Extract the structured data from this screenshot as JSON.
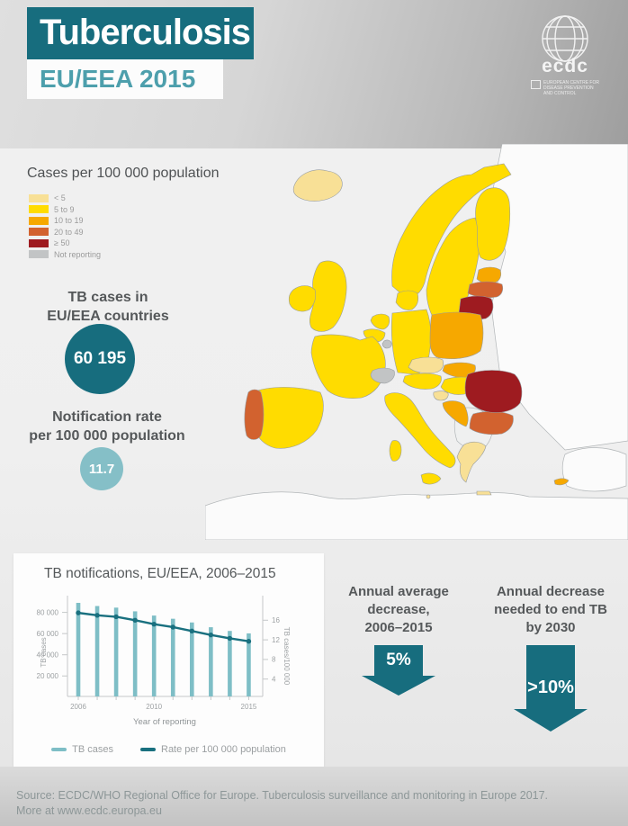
{
  "header": {
    "title": "Tuberculosis",
    "subtitle": "EU/EEA 2015",
    "logo_text": "ecdc",
    "logo_caption": "EUROPEAN CENTRE FOR\nDISEASE PREVENTION\nAND CONTROL"
  },
  "legend": {
    "title": "Cases per 100 000 population",
    "items": [
      {
        "label": "< 5",
        "key": "lt5",
        "color": "#F8E096"
      },
      {
        "label": "5 to 9",
        "key": "c5to9",
        "color": "#FFDC00"
      },
      {
        "label": "10 to 19",
        "key": "c10to19",
        "color": "#F6A800"
      },
      {
        "label": "20 to 49",
        "key": "c20to49",
        "color": "#D2622F"
      },
      {
        "label": "≥ 50",
        "key": "ge50",
        "color": "#9E1B20"
      },
      {
        "label": "Not reporting",
        "key": "not_reporting",
        "color": "#C2C4C5"
      }
    ]
  },
  "stats": {
    "cases_label": "TB cases in\nEU/EEA countries",
    "cases_value": "60 195",
    "rate_label": "Notification rate\nper 100 000 population",
    "rate_value": "11.7"
  },
  "map": {
    "non_eu_fill": "#FBFBFB",
    "balkans_fill": "#EFF0F0",
    "countries": {
      "iceland": "lt5",
      "norway": "c5to9",
      "sweden": "c5to9",
      "finland": "c5to9",
      "estonia": "c10to19",
      "latvia": "c20to49",
      "lithuania": "ge50",
      "denmark": "c5to9",
      "united-kingdom": "c5to9",
      "ireland": "c5to9",
      "netherlands": "c5to9",
      "belgium": "c5to9",
      "luxembourg": "not_reporting",
      "germany": "c5to9",
      "poland": "c10to19",
      "czech-republic": "lt5",
      "slovakia": "c10to19",
      "austria": "c5to9",
      "hungary": "c5to9",
      "slovenia": "lt5",
      "croatia": "c10to19",
      "france": "c5to9",
      "switzerland": "not_reporting",
      "italy": "c5to9",
      "sicily": "c5to9",
      "sardinia": "c5to9",
      "spain": "c5to9",
      "portugal": "c20to49",
      "greece": "lt5",
      "crete": "lt5",
      "bulgaria": "c20to49",
      "romania": "ge50",
      "cyprus": "c10to19",
      "malta": "lt5"
    }
  },
  "chart_data": {
    "type": "bar+line",
    "title": "TB notifications, EU/EEA, 2006–2015",
    "x": [
      2006,
      2007,
      2008,
      2009,
      2010,
      2011,
      2012,
      2013,
      2014,
      2015
    ],
    "series": [
      {
        "name": "TB cases",
        "type": "bar",
        "axis": "left",
        "color": "#7EBEC6",
        "values": [
          89000,
          86000,
          84500,
          81000,
          77000,
          74000,
          70500,
          66000,
          62500,
          60195
        ]
      },
      {
        "name": "Rate per 100 000 population",
        "type": "line",
        "axis": "right",
        "color": "#19707F",
        "values": [
          17.5,
          17.0,
          16.7,
          16.0,
          15.2,
          14.6,
          13.8,
          13.0,
          12.3,
          11.7
        ]
      }
    ],
    "xlabel": "Year of reporting",
    "left_axis": {
      "label": "TB cases",
      "lim": [
        0,
        92000
      ],
      "ticks": [
        {
          "v": 20000,
          "label": "20 000"
        },
        {
          "v": 40000,
          "label": "40 000"
        },
        {
          "v": 60000,
          "label": "60 000"
        },
        {
          "v": 80000,
          "label": "80 000"
        }
      ]
    },
    "right_axis": {
      "label": "TB cases/100 000",
      "lim": [
        0,
        18.5
      ],
      "ticks": [
        {
          "v": 4,
          "label": "4"
        },
        {
          "v": 8,
          "label": "8"
        },
        {
          "v": 12,
          "label": "12"
        },
        {
          "v": 16,
          "label": "16"
        }
      ]
    },
    "xticks": [
      "2006",
      "2010",
      "2015"
    ],
    "grid": false,
    "legend_position": "bottom"
  },
  "callouts": [
    {
      "heading": "Annual average\ndecrease,\n2006–2015",
      "value": "5%"
    },
    {
      "heading": "Annual decrease\nneeded to end TB\nby 2030",
      "value": ">10%"
    }
  ],
  "footer": {
    "line1": "Source: ECDC/WHO Regional Office for Europe. Tuberculosis surveillance and monitoring in Europe 2017.",
    "line2": "More at www.ecdc.europa.eu"
  },
  "colors": {
    "brand_teal": "#176D7E",
    "light_teal": "#7EBEC6",
    "subtitle_teal": "#4D9FAC"
  }
}
